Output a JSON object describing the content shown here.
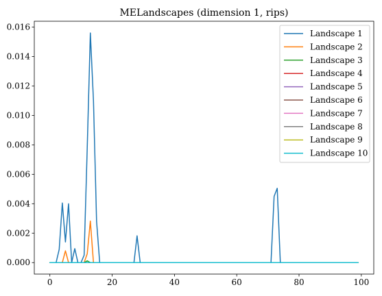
{
  "chart_data": {
    "type": "line",
    "title": "MELandscapes (dimension 1, rips)",
    "xlabel": "",
    "ylabel": "",
    "xlim": [
      -5,
      104
    ],
    "ylim": [
      -0.00078,
      0.0164
    ],
    "x_ticks": [
      0,
      20,
      40,
      60,
      80,
      100
    ],
    "x_tick_labels": [
      "0",
      "20",
      "40",
      "60",
      "80",
      "100"
    ],
    "y_ticks": [
      0,
      0.002,
      0.004,
      0.006,
      0.008,
      0.01,
      0.012,
      0.014,
      0.016
    ],
    "y_tick_labels": [
      "0.000",
      "0.002",
      "0.004",
      "0.006",
      "0.008",
      "0.010",
      "0.012",
      "0.014",
      "0.016"
    ],
    "grid": false,
    "legend_position": "upper right",
    "series": [
      {
        "name": "Landscape 1",
        "color": "#1f77b4",
        "points": [
          [
            0,
            0
          ],
          [
            2,
            0
          ],
          [
            3,
            0.0009
          ],
          [
            4,
            0.00405
          ],
          [
            5,
            0.0014
          ],
          [
            6,
            0.004
          ],
          [
            7,
            0
          ],
          [
            8,
            0.00095
          ],
          [
            9,
            0
          ],
          [
            10,
            0
          ],
          [
            11,
            0.0005
          ],
          [
            12,
            0.0078
          ],
          [
            13,
            0.0156
          ],
          [
            14,
            0.011
          ],
          [
            15,
            0.0028
          ],
          [
            16,
            0
          ],
          [
            27,
            0
          ],
          [
            28,
            0.00182
          ],
          [
            29,
            0
          ],
          [
            71,
            0
          ],
          [
            72,
            0.0045
          ],
          [
            73,
            0.00505
          ],
          [
            74,
            0
          ],
          [
            99,
            0
          ]
        ]
      },
      {
        "name": "Landscape 2",
        "color": "#ff7f0e",
        "points": [
          [
            0,
            0
          ],
          [
            4,
            0
          ],
          [
            5,
            0.0008
          ],
          [
            6,
            0
          ],
          [
            11,
            0
          ],
          [
            12,
            0.0006
          ],
          [
            13,
            0.00282
          ],
          [
            14,
            0
          ],
          [
            99,
            0
          ]
        ]
      },
      {
        "name": "Landscape 3",
        "color": "#2ca02c",
        "points": [
          [
            0,
            0
          ],
          [
            11,
            0
          ],
          [
            12,
            0.00012
          ],
          [
            13,
            0
          ],
          [
            99,
            0
          ]
        ]
      },
      {
        "name": "Landscape 4",
        "color": "#d62728",
        "points": [
          [
            0,
            0
          ],
          [
            99,
            0
          ]
        ]
      },
      {
        "name": "Landscape 5",
        "color": "#9467bd",
        "points": [
          [
            0,
            0
          ],
          [
            99,
            0
          ]
        ]
      },
      {
        "name": "Landscape 6",
        "color": "#8c564b",
        "points": [
          [
            0,
            0
          ],
          [
            99,
            0
          ]
        ]
      },
      {
        "name": "Landscape 7",
        "color": "#e377c2",
        "points": [
          [
            0,
            0
          ],
          [
            99,
            0
          ]
        ]
      },
      {
        "name": "Landscape 8",
        "color": "#7f7f7f",
        "points": [
          [
            0,
            0
          ],
          [
            99,
            0
          ]
        ]
      },
      {
        "name": "Landscape 9",
        "color": "#bcbd22",
        "points": [
          [
            0,
            0
          ],
          [
            99,
            0
          ]
        ]
      },
      {
        "name": "Landscape 10",
        "color": "#17becf",
        "points": [
          [
            0,
            0
          ],
          [
            99,
            0
          ]
        ]
      }
    ]
  }
}
